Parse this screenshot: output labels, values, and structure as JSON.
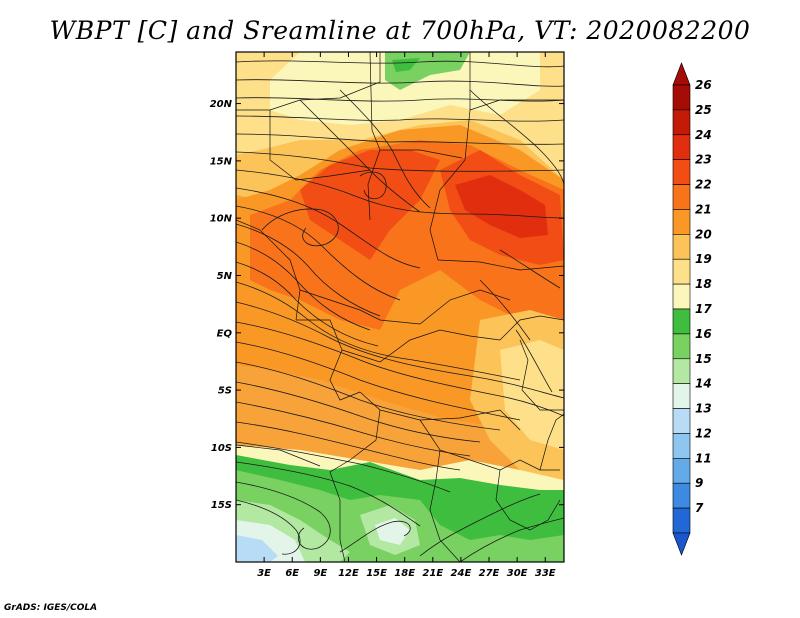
{
  "title": "WBPT [C] and Sreamline at 700hPa, VT: 2020082200",
  "credit": "GrADS: IGES/COLA",
  "map": {
    "lat_range": [
      -20,
      24.5
    ],
    "lon_range": [
      0,
      35
    ],
    "lat_ticks": [
      {
        "value": 20,
        "label": "20N"
      },
      {
        "value": 15,
        "label": "15N"
      },
      {
        "value": 10,
        "label": "10N"
      },
      {
        "value": 5,
        "label": "5N"
      },
      {
        "value": 0,
        "label": "EQ"
      },
      {
        "value": -5,
        "label": "5S"
      },
      {
        "value": -10,
        "label": "10S"
      },
      {
        "value": -15,
        "label": "15S"
      }
    ],
    "lon_ticks": [
      {
        "value": 3,
        "label": "3E"
      },
      {
        "value": 6,
        "label": "6E"
      },
      {
        "value": 9,
        "label": "9E"
      },
      {
        "value": 12,
        "label": "12E"
      },
      {
        "value": 15,
        "label": "15E"
      },
      {
        "value": 18,
        "label": "18E"
      },
      {
        "value": 21,
        "label": "21E"
      },
      {
        "value": 24,
        "label": "24E"
      },
      {
        "value": 27,
        "label": "27E"
      },
      {
        "value": 30,
        "label": "30E"
      },
      {
        "value": 33,
        "label": "33E"
      }
    ]
  },
  "colorbar": {
    "levels": [
      {
        "label": "26",
        "color": "#a50c05"
      },
      {
        "label": "25",
        "color": "#c41a08"
      },
      {
        "label": "24",
        "color": "#e02e0e"
      },
      {
        "label": "23",
        "color": "#f24d14"
      },
      {
        "label": "22",
        "color": "#f8731a"
      },
      {
        "label": "21",
        "color": "#fa9826"
      },
      {
        "label": "20",
        "color": "#fcc358"
      },
      {
        "label": "19",
        "color": "#fde089"
      },
      {
        "label": "18",
        "color": "#fbf6ba"
      },
      {
        "label": "17",
        "color": "#3ebd3e"
      },
      {
        "label": "16",
        "color": "#78d160"
      },
      {
        "label": "15",
        "color": "#b3e8a2"
      },
      {
        "label": "14",
        "color": "#e3f4e8"
      },
      {
        "label": "13",
        "color": "#b8dcf6"
      },
      {
        "label": "12",
        "color": "#8fc6f0"
      },
      {
        "label": "11",
        "color": "#64a9e8"
      },
      {
        "label": "9",
        "color": "#3d8ae0"
      },
      {
        "label": "7",
        "color": "#2168d6"
      }
    ],
    "bottom_color": "#1a57cf"
  }
}
